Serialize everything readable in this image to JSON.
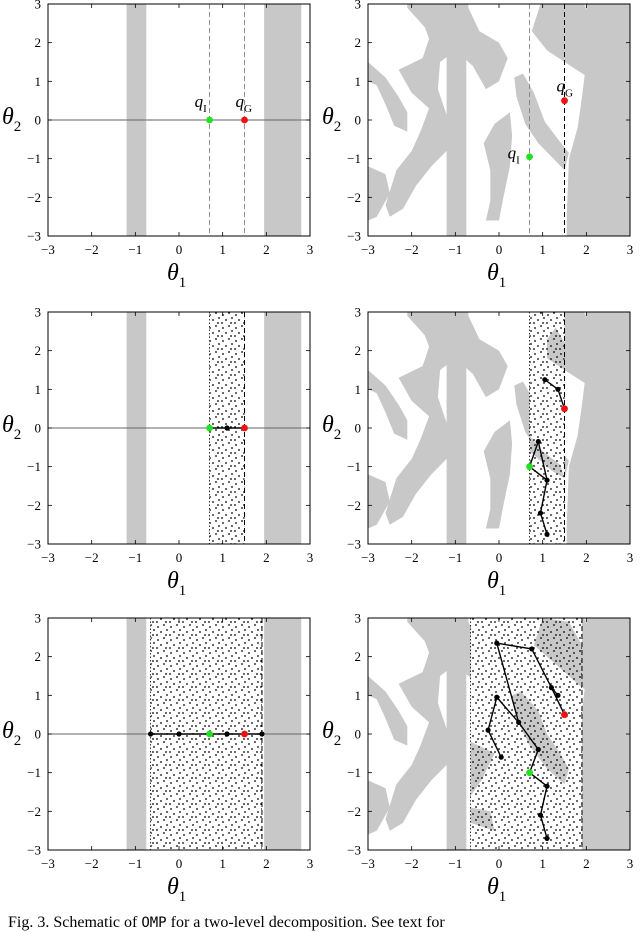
{
  "figure": {
    "axis_ticks": [
      "−3",
      "−2",
      "−1",
      "0",
      "1",
      "2",
      "3"
    ],
    "xlabel_base": "θ",
    "xlabel_sub": "1",
    "ylabel_base": "θ",
    "ylabel_sub": "2",
    "qI_base": "q",
    "qI_sub": "I",
    "qG_base": "q",
    "qG_sub": "G",
    "colors": {
      "obstacle": "#c8c8c8",
      "start": "#22e022",
      "goal": "#ee1111",
      "tree": "#000000",
      "stipple": "#000000"
    }
  },
  "chart_data": [
    {
      "type": "scatter",
      "panel": "left-top",
      "xlim": [
        -3,
        3
      ],
      "ylim": [
        -3,
        3
      ],
      "obstacles_theta1": [
        [
          -1.2,
          -0.75
        ],
        [
          1.95,
          2.8
        ]
      ],
      "qI": [
        0.7,
        0
      ],
      "qG": [
        1.5,
        0
      ],
      "stippled_band": null,
      "tree_nodes": []
    },
    {
      "type": "scatter",
      "panel": "right-top",
      "xlim": [
        -3,
        3
      ],
      "ylim": [
        -3,
        3
      ],
      "qI": [
        0.7,
        -0.95
      ],
      "qG": [
        1.5,
        0.5
      ],
      "stippled_band": null,
      "tree_nodes": []
    },
    {
      "type": "scatter",
      "panel": "left-middle",
      "xlim": [
        -3,
        3
      ],
      "ylim": [
        -3,
        3
      ],
      "qI": [
        0.7,
        0
      ],
      "qG": [
        1.5,
        0
      ],
      "stippled_band": [
        0.7,
        1.5
      ],
      "tree_nodes": [
        [
          0.7,
          0
        ],
        [
          1.1,
          0
        ],
        [
          1.5,
          0
        ]
      ]
    },
    {
      "type": "scatter",
      "panel": "right-middle",
      "xlim": [
        -3,
        3
      ],
      "ylim": [
        -3,
        3
      ],
      "qI": [
        0.7,
        -1.0
      ],
      "qG": [
        1.5,
        0.5
      ],
      "stippled_band": [
        0.7,
        1.5
      ],
      "tree_nodes": [
        [
          0.7,
          -1.0
        ],
        [
          0.9,
          -0.35
        ],
        [
          1.1,
          -1.35
        ],
        [
          0.95,
          -2.2
        ],
        [
          1.1,
          -2.75
        ],
        [
          1.05,
          1.25
        ],
        [
          1.35,
          1.0
        ],
        [
          1.5,
          0.5
        ]
      ]
    },
    {
      "type": "scatter",
      "panel": "left-bottom",
      "xlim": [
        -3,
        3
      ],
      "ylim": [
        -3,
        3
      ],
      "qI": [
        0.7,
        0
      ],
      "qG": [
        1.5,
        0
      ],
      "stippled_band": [
        -0.65,
        1.9
      ],
      "tree_nodes": [
        [
          -0.65,
          0
        ],
        [
          0.0,
          0
        ],
        [
          0.7,
          0
        ],
        [
          1.1,
          0
        ],
        [
          1.5,
          0
        ],
        [
          1.9,
          0
        ]
      ]
    },
    {
      "type": "scatter",
      "panel": "right-bottom",
      "xlim": [
        -3,
        3
      ],
      "ylim": [
        -3,
        3
      ],
      "qI": [
        0.7,
        -1.0
      ],
      "qG": [
        1.5,
        0.5
      ],
      "stippled_band": [
        -0.65,
        1.9
      ],
      "tree_nodes": [
        [
          0.7,
          -1.0
        ],
        [
          1.1,
          -1.35
        ],
        [
          0.95,
          -2.1
        ],
        [
          1.1,
          -2.7
        ],
        [
          0.9,
          -0.4
        ],
        [
          0.45,
          0.3
        ],
        [
          -0.05,
          0.95
        ],
        [
          -0.25,
          0.1
        ],
        [
          0.05,
          -0.6
        ],
        [
          -0.05,
          2.35
        ],
        [
          0.75,
          2.2
        ],
        [
          1.2,
          1.2
        ],
        [
          1.5,
          0.5
        ],
        [
          1.35,
          1.0
        ]
      ]
    }
  ],
  "caption": {
    "prefix": "Fig. 3.    Schematic of ",
    "method": "OMP",
    "suffix": " for a two-level decomposition. See text for"
  }
}
